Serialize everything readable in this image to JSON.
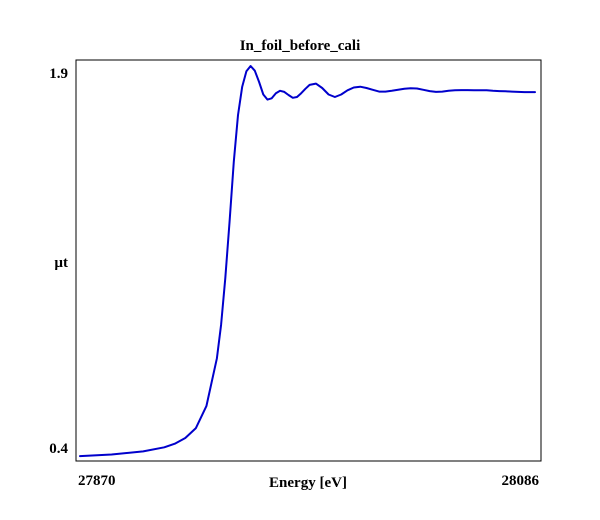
{
  "chart_data": {
    "type": "line",
    "title": "In_foil_before_cali",
    "xlabel": "Energy [eV]",
    "ylabel": "µt",
    "xlim": [
      27870,
      28086
    ],
    "ylim": [
      0.4,
      1.9
    ],
    "x_tick_labels": [
      "27870",
      "28086"
    ],
    "y_tick_labels": [
      "1.9",
      "0.4"
    ],
    "grid": false,
    "line_color": "#0000cc",
    "series": [
      {
        "x": [
          27870,
          27885,
          27900,
          27910,
          27915,
          27920,
          27925,
          27930,
          27935,
          27937,
          27939,
          27941,
          27943,
          27945,
          27947,
          27949,
          27951,
          27953,
          27955,
          27957,
          27959,
          27961,
          27963,
          27965,
          27967,
          27969,
          27971,
          27973,
          27975,
          27977,
          27979,
          27982,
          27985,
          27988,
          27991,
          27994,
          27997,
          28000,
          28003,
          28006,
          28009,
          28012,
          28015,
          28018,
          28021,
          28024,
          28027,
          28030,
          28033,
          28036,
          28039,
          28042,
          28045,
          28048,
          28051,
          28054,
          28057,
          28060,
          28063,
          28066,
          28069,
          28072,
          28075,
          28078,
          28081,
          28084,
          28086
        ],
        "y": [
          0.392,
          0.398,
          0.41,
          0.426,
          0.44,
          0.462,
          0.5,
          0.585,
          0.77,
          0.9,
          1.08,
          1.3,
          1.53,
          1.71,
          1.82,
          1.88,
          1.9,
          1.882,
          1.838,
          1.79,
          1.77,
          1.775,
          1.795,
          1.804,
          1.8,
          1.788,
          1.777,
          1.78,
          1.795,
          1.812,
          1.827,
          1.832,
          1.815,
          1.79,
          1.78,
          1.79,
          1.806,
          1.817,
          1.82,
          1.815,
          1.808,
          1.801,
          1.801,
          1.804,
          1.808,
          1.812,
          1.814,
          1.813,
          1.808,
          1.803,
          1.8,
          1.801,
          1.804,
          1.806,
          1.807,
          1.807,
          1.806,
          1.806,
          1.806,
          1.804,
          1.803,
          1.802,
          1.801,
          1.8,
          1.799,
          1.799,
          1.799
        ]
      }
    ]
  }
}
